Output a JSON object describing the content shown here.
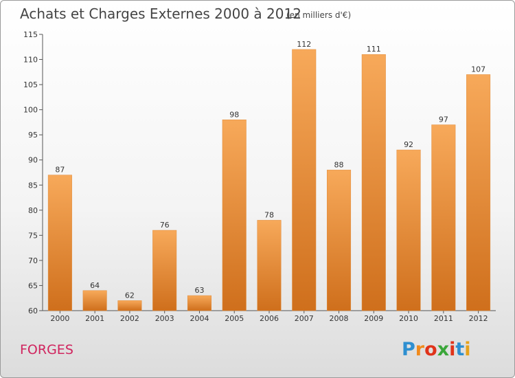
{
  "chart_data": {
    "type": "bar",
    "title": "Achats et Charges Externes 2000 à 2012",
    "subtitle": "(en milliers d'€)",
    "xlabel": "",
    "ylabel": "",
    "categories": [
      "2000",
      "2001",
      "2002",
      "2003",
      "2004",
      "2005",
      "2006",
      "2007",
      "2008",
      "2009",
      "2010",
      "2011",
      "2012"
    ],
    "values": [
      87,
      64,
      62,
      76,
      63,
      98,
      78,
      112,
      88,
      111,
      92,
      97,
      107
    ],
    "data_labels": [
      "87",
      "64",
      "62",
      "76",
      "63",
      "98",
      "78",
      "112",
      "88",
      "111",
      "92",
      "97",
      "107"
    ],
    "ylim": [
      60,
      115
    ],
    "yticks": [
      60,
      65,
      70,
      75,
      80,
      85,
      90,
      95,
      100,
      105,
      110,
      115
    ],
    "ytick_labels": [
      "60",
      "65",
      "70",
      "75",
      "80",
      "85",
      "90",
      "95",
      "100",
      "105",
      "110",
      "115"
    ],
    "grid": false,
    "bar_color_top": "#f7a95a",
    "bar_color_bottom": "#cf6f1c"
  },
  "footer": {
    "place": "FORGES",
    "logo_letters": [
      "P",
      "r",
      "o",
      "x",
      "i",
      "t",
      "i"
    ],
    "logo_colors": [
      "#2e8fd0",
      "#f08a1c",
      "#e0331a",
      "#3aa63a",
      "#e0331a",
      "#2e8fd0",
      "#e6a21a"
    ]
  }
}
